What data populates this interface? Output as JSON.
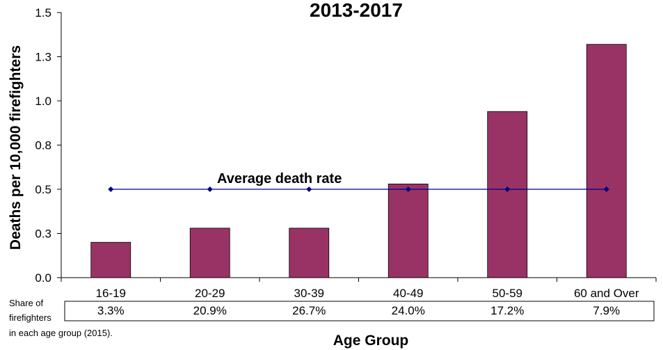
{
  "chart_data": {
    "type": "bar",
    "title": "2013-2017",
    "xlabel": "Age Group",
    "ylabel": "Deaths per 10,000 firefighters",
    "ylim": [
      0,
      1.5
    ],
    "yticks": [
      "0.0",
      "0.3",
      "0.5",
      "0.8",
      "1.0",
      "1.3",
      "1.5"
    ],
    "categories": [
      "16-19",
      "20-29",
      "30-39",
      "40-49",
      "50-59",
      "60 and Over"
    ],
    "series": [
      {
        "values": [
          0.2,
          0.28,
          0.28,
          0.53,
          0.94,
          1.32
        ],
        "color": "#993366"
      }
    ],
    "average": {
      "label": "Average death rate",
      "value": 0.5,
      "color": "#000080"
    },
    "share_table": {
      "label_lines": [
        "Share of",
        "firefighters",
        "in each age group (2015)."
      ],
      "values": [
        "3.3%",
        "20.9%",
        "26.7%",
        "24.0%",
        "17.2%",
        "7.9%"
      ]
    },
    "grid": false,
    "legend": "none"
  }
}
